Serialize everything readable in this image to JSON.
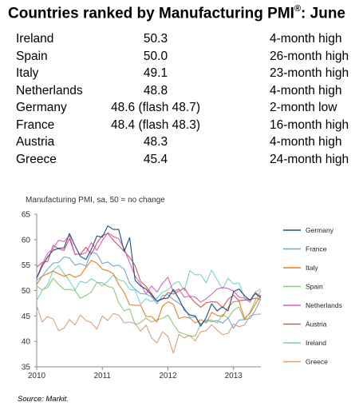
{
  "title": {
    "text": "Countries ranked by Manufacturing PMI",
    "sup": "®",
    "suffix": ": June"
  },
  "table": {
    "rows": [
      {
        "country": "Ireland",
        "pmi": "50.3",
        "status": "4-month high"
      },
      {
        "country": "Spain",
        "pmi": "50.0",
        "status": "26-month high"
      },
      {
        "country": "Italy",
        "pmi": "49.1",
        "status": "23-month high"
      },
      {
        "country": "Netherlands",
        "pmi": "48.8",
        "status": "4-month high"
      },
      {
        "country": "Germany",
        "pmi": "48.6 (flash 48.7)",
        "status": "2-month low"
      },
      {
        "country": "France",
        "pmi": "48.4 (flash 48.3)",
        "status": "16-month high"
      },
      {
        "country": "Austria",
        "pmi": "48.3",
        "status": "4-month high"
      },
      {
        "country": "Greece",
        "pmi": "45.4",
        "status": "24-month high"
      }
    ]
  },
  "chart_data": {
    "type": "line",
    "title": "Manufacturing PMI, sa, 50 = no change",
    "xlabel": "",
    "ylabel": "",
    "x_start": "2010-01",
    "x_end": "2013-06",
    "x_ticks": [
      "2010",
      "2011",
      "2012",
      "2013"
    ],
    "ylim": [
      35,
      65
    ],
    "y_ticks": [
      35,
      40,
      45,
      50,
      55,
      60,
      65
    ],
    "grid": false,
    "legend_position": "right",
    "series": [
      {
        "name": "Germany",
        "color": "#1f4e79",
        "values": [
          52.4,
          54.8,
          56.6,
          57.9,
          58.3,
          58.4,
          61.2,
          58.8,
          56.7,
          56.1,
          58.1,
          60.7,
          60.5,
          62.7,
          62.0,
          62.0,
          57.7,
          60.4,
          52.0,
          50.9,
          50.3,
          49.1,
          47.9,
          48.4,
          48.5,
          50.2,
          48.4,
          46.2,
          45.2,
          45.0,
          43.0,
          44.7,
          47.4,
          46.0,
          46.8,
          46.0,
          49.8,
          50.3,
          49.0,
          48.1,
          49.4,
          48.6
        ]
      },
      {
        "name": "France",
        "color": "#6fa8dc",
        "values": [
          52.0,
          52.8,
          54.2,
          55.4,
          55.5,
          56.6,
          56.4,
          55.0,
          55.3,
          54.8,
          57.6,
          57.2,
          55.3,
          55.6,
          54.8,
          55.0,
          54.2,
          51.4,
          50.2,
          49.4,
          49.3,
          48.8,
          47.4,
          49.0,
          49.2,
          48.2,
          47.5,
          46.6,
          44.7,
          44.8,
          43.4,
          44.0,
          43.9,
          44.1,
          43.6,
          44.6,
          42.6,
          44.2,
          44.3,
          44.5,
          46.1,
          48.4
        ]
      },
      {
        "name": "Italy",
        "color": "#e67e22",
        "values": [
          51.2,
          52.8,
          53.3,
          53.8,
          53.3,
          52.8,
          53.2,
          52.6,
          53.0,
          54.5,
          55.9,
          55.4,
          54.2,
          53.9,
          53.3,
          51.2,
          49.6,
          47.2,
          47.1,
          47.1,
          44.9,
          44.9,
          43.8,
          46.9,
          47.8,
          47.3,
          44.5,
          44.8,
          44.6,
          43.6,
          44.3,
          43.6,
          45.7,
          45.1,
          44.9,
          46.7,
          47.8,
          47.9,
          44.5,
          45.5,
          47.3,
          49.1
        ]
      },
      {
        "name": "Spain",
        "color": "#93c47d",
        "values": [
          50.9,
          50.1,
          50.6,
          52.4,
          51.2,
          50.2,
          50.2,
          50.0,
          48.5,
          49.0,
          49.7,
          51.6,
          51.5,
          50.8,
          50.5,
          47.6,
          46.0,
          46.4,
          43.3,
          43.7,
          44.6,
          43.8,
          44.3,
          44.5,
          45.2,
          43.4,
          41.8,
          41.5,
          41.0,
          41.1,
          43.4,
          44.2,
          44.2,
          43.6,
          45.3,
          44.6,
          46.1,
          46.8,
          44.2,
          45.7,
          48.1,
          50.0
        ]
      },
      {
        "name": "Netherlands",
        "color": "#d55fc6",
        "values": [
          52.5,
          55.2,
          57.3,
          58.2,
          59.9,
          59.6,
          60.8,
          57.2,
          57.1,
          57.4,
          59.4,
          57.9,
          59.8,
          61.4,
          60.6,
          60.2,
          58.2,
          55.5,
          52.8,
          51.3,
          49.3,
          50.9,
          49.7,
          51.4,
          52.6,
          49.7,
          50.3,
          48.7,
          48.9,
          48.7,
          47.7,
          48.4,
          49.3,
          50.3,
          50.6,
          50.4,
          49.9,
          48.7,
          48.5,
          47.7,
          49.6,
          48.8
        ]
      },
      {
        "name": "Austria",
        "color": "#d9534f",
        "values": [
          54.6,
          55.5,
          55.7,
          58.9,
          58.2,
          57.9,
          60.2,
          57.1,
          57.2,
          58.5,
          57.1,
          59.3,
          60.8,
          61.2,
          59.9,
          58.8,
          57.7,
          56.5,
          54.9,
          51.8,
          50.8,
          49.4,
          47.9,
          48.3,
          49.6,
          49.3,
          49.9,
          50.5,
          48.8,
          47.6,
          46.7,
          47.6,
          47.8,
          47.7,
          46.6,
          48.3,
          49.1,
          48.0,
          48.1,
          48.2,
          48.5,
          48.3
        ]
      },
      {
        "name": "Ireland",
        "color": "#7ad1c8",
        "values": [
          48.0,
          50.0,
          51.2,
          53.9,
          54.9,
          53.3,
          51.9,
          50.1,
          51.8,
          51.5,
          52.3,
          51.7,
          50.9,
          51.8,
          53.0,
          52.1,
          51.8,
          50.2,
          50.1,
          47.3,
          48.4,
          47.8,
          48.5,
          49.7,
          50.1,
          51.3,
          51.8,
          49.9,
          53.9,
          53.1,
          53.1,
          51.5,
          54.0,
          52.1,
          50.3,
          52.4,
          51.3,
          51.5,
          48.6,
          48.0,
          49.7,
          50.3
        ]
      },
      {
        "name": "Greece",
        "color": "#d9a07a",
        "values": [
          47.1,
          43.8,
          44.9,
          44.4,
          42.1,
          42.6,
          44.3,
          43.2,
          45.2,
          44.1,
          43.7,
          42.4,
          45.0,
          44.1,
          45.5,
          45.2,
          43.6,
          43.8,
          43.5,
          42.0,
          43.2,
          40.7,
          39.7,
          41.9,
          41.0,
          37.7,
          41.4,
          40.7,
          41.2,
          40.1,
          41.9,
          42.1,
          43.3,
          42.2,
          41.3,
          41.6,
          43.4,
          42.9,
          43.2,
          45.0,
          45.3,
          45.4
        ]
      }
    ]
  },
  "source": "Source: Markit."
}
